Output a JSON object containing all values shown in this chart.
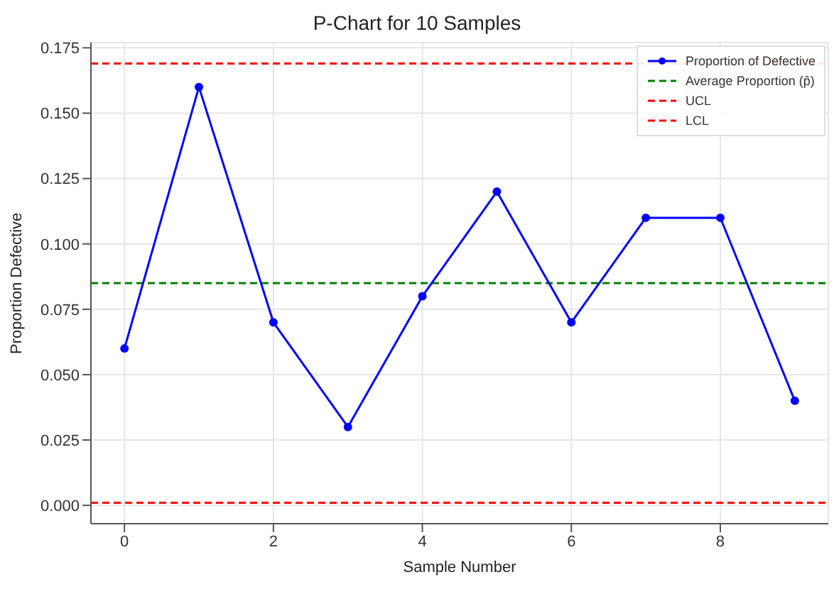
{
  "chart_data": {
    "type": "line",
    "title": "P-Chart for 10 Samples",
    "xlabel": "Sample Number",
    "ylabel": "Proportion Defective",
    "x": [
      0,
      1,
      2,
      3,
      4,
      5,
      6,
      7,
      8,
      9
    ],
    "series": [
      {
        "name": "Proportion of Defective",
        "color": "#0000ff",
        "values": [
          0.06,
          0.16,
          0.07,
          0.03,
          0.08,
          0.12,
          0.07,
          0.11,
          0.11,
          0.04
        ]
      }
    ],
    "ref_lines": [
      {
        "axis": "y",
        "value": 0.085,
        "label": "Average Proportion (p̂)",
        "color": "#008000",
        "line_style": "dashed"
      },
      {
        "axis": "y",
        "value": 0.169,
        "label": "UCL",
        "color": "#ff0000",
        "line_style": "dashed"
      },
      {
        "axis": "y",
        "value": 0.001,
        "label": "LCL",
        "color": "#ff0000",
        "line_style": "dashed"
      }
    ],
    "xlim": [
      -0.45,
      9.45
    ],
    "xticks": [
      0,
      2,
      4,
      6,
      8
    ],
    "ylim": [
      -0.007,
      0.177
    ],
    "yticks": [
      {
        "value": 0,
        "label": "0.000"
      },
      0.025,
      {
        "value": 0.05,
        "label": "0.050"
      },
      0.075,
      {
        "value": 0.1,
        "label": "0.100"
      },
      0.125,
      {
        "value": 0.15,
        "label": "0.150"
      },
      0.175
    ],
    "grid": true,
    "legend": "top right",
    "marker": "circle",
    "line_style": "solid"
  }
}
